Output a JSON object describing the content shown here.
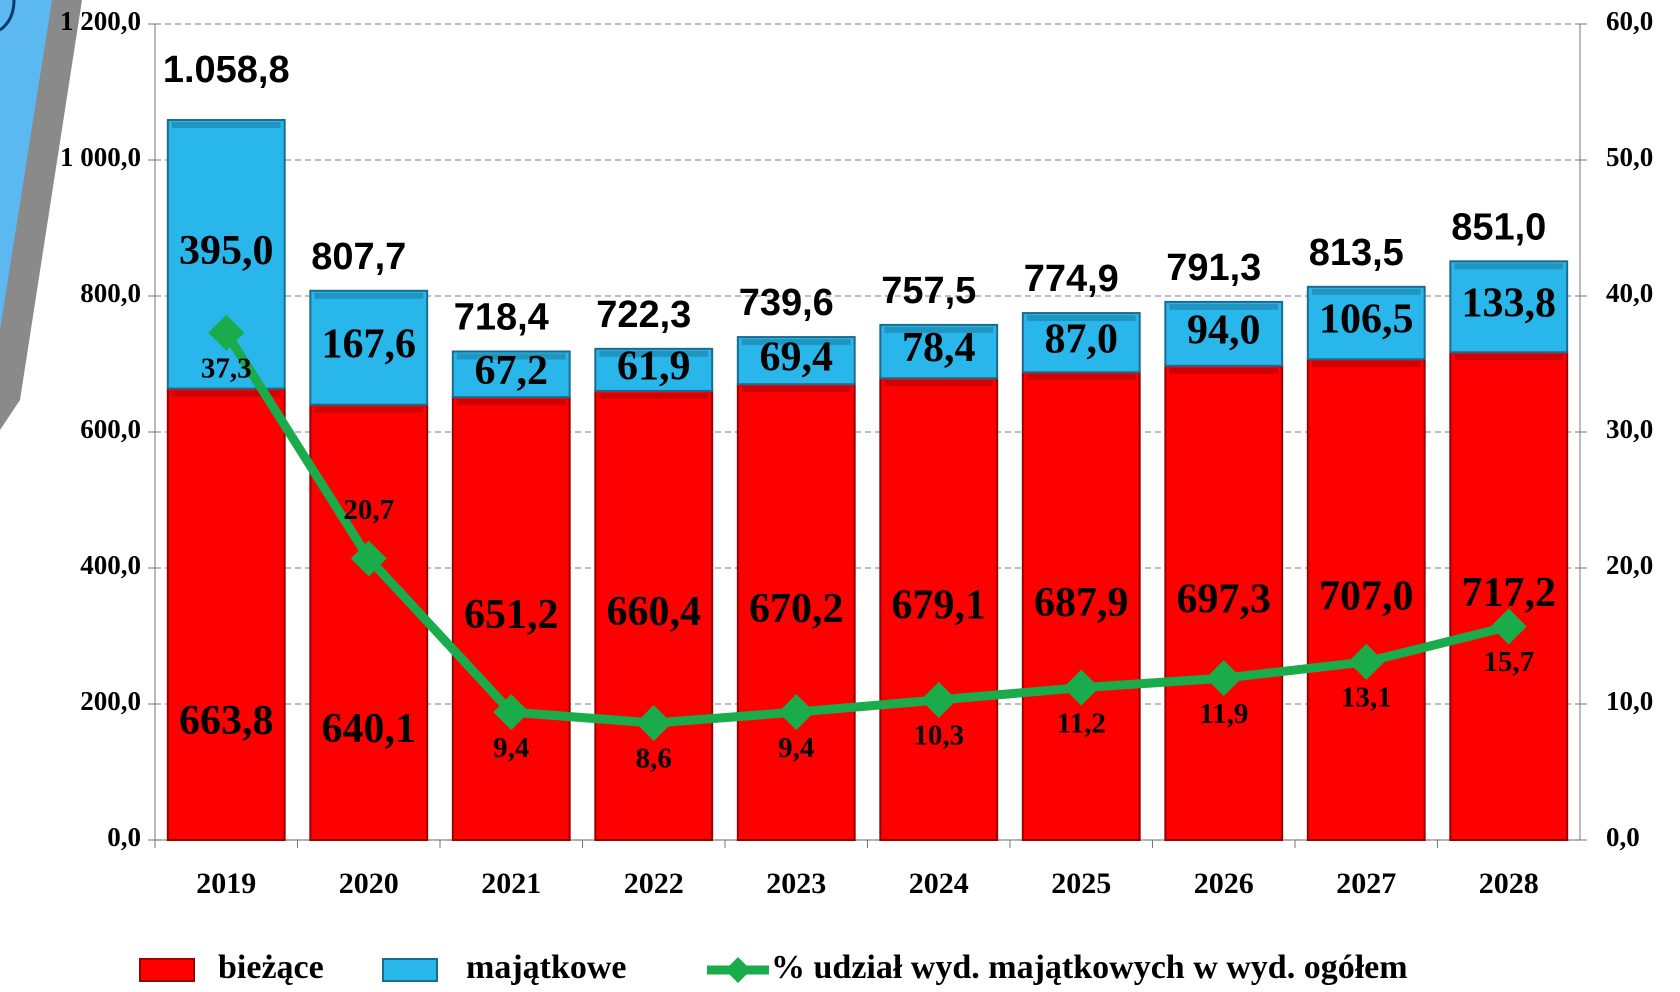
{
  "chart_data": {
    "type": "stacked-bar-line",
    "categories": [
      "2019",
      "2020",
      "2021",
      "2022",
      "2023",
      "2024",
      "2025",
      "2026",
      "2027",
      "2028"
    ],
    "series": [
      {
        "name": "bieżące",
        "color": "#ff0000",
        "values": [
          663.8,
          640.1,
          651.2,
          660.4,
          670.2,
          679.1,
          687.9,
          697.3,
          707.0,
          717.2
        ],
        "value_labels": [
          "663,8",
          "640,1",
          "651,2",
          "660,4",
          "670,2",
          "679,1",
          "687,9",
          "697,3",
          "707,0",
          "717,2"
        ]
      },
      {
        "name": "majątkowe",
        "color": "#29b6ea",
        "values": [
          395.0,
          167.6,
          67.2,
          61.9,
          69.4,
          78.4,
          87.0,
          94.0,
          106.5,
          133.8
        ],
        "value_labels": [
          "395,0",
          "167,6",
          "67,2",
          "61,9",
          "69,4",
          "78,4",
          "87,0",
          "94,0",
          "106,5",
          "133,8"
        ]
      },
      {
        "name": "% udział wyd. majątkowych w wyd. ogółem",
        "color": "#1aab4a",
        "axis": "y2",
        "values": [
          37.3,
          20.7,
          9.4,
          8.6,
          9.4,
          10.3,
          11.2,
          11.9,
          13.1,
          15.7
        ],
        "value_labels": [
          "37,3",
          "20,7",
          "9,4",
          "8,6",
          "9,4",
          "10,3",
          "11,2",
          "11,9",
          "13,1",
          "15,7"
        ]
      }
    ],
    "totals": {
      "values": [
        1058.8,
        807.7,
        718.4,
        722.3,
        739.6,
        757.5,
        774.9,
        791.3,
        813.5,
        851.0
      ],
      "value_labels": [
        "1.058,8",
        "807,7",
        "718,4",
        "722,3",
        "739,6",
        "757,5",
        "774,9",
        "791,3",
        "813,5",
        "851,0"
      ]
    },
    "ylim": [
      0,
      1200
    ],
    "yticks": [
      {
        "value": 0,
        "label": "0,0"
      },
      {
        "value": 200,
        "label": "200,0"
      },
      {
        "value": 400,
        "label": "400,0"
      },
      {
        "value": 600,
        "label": "600,0"
      },
      {
        "value": 800,
        "label": "800,0"
      },
      {
        "value": 1000,
        "label": "1 000,0"
      },
      {
        "value": 1200,
        "label": "1 200,0"
      }
    ],
    "y2lim": [
      0,
      60
    ],
    "y2ticks": [
      {
        "value": 0,
        "label": "0,0"
      },
      {
        "value": 10,
        "label": "10,0"
      },
      {
        "value": 20,
        "label": "20,0"
      },
      {
        "value": 30,
        "label": "30,0"
      },
      {
        "value": 40,
        "label": "40,0"
      },
      {
        "value": 50,
        "label": "50,0"
      },
      {
        "value": 60,
        "label": "60,0"
      }
    ],
    "grid": true,
    "legend": "bottom"
  }
}
